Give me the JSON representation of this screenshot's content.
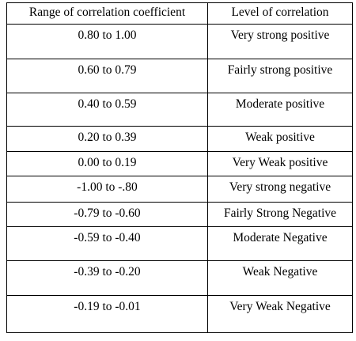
{
  "table": {
    "headers": [
      "Range of correlation coefficient",
      "Level of correlation"
    ],
    "rows": [
      {
        "range": "0.80 to 1.00",
        "level": "Very strong positive"
      },
      {
        "range": "0.60 to 0.79",
        "level": "Fairly strong positive"
      },
      {
        "range": "0.40 to 0.59",
        "level": "Moderate positive"
      },
      {
        "range": "0.20 to 0.39",
        "level": "Weak positive"
      },
      {
        "range": "0.00 to 0.19",
        "level": "Very Weak positive"
      },
      {
        "range": "-1.00 to -.80",
        "level": "Very strong negative"
      },
      {
        "range": "-0.79 to -0.60",
        "level": "Fairly Strong Negative"
      },
      {
        "range": "-0.59 to -0.40",
        "level": "Moderate Negative"
      },
      {
        "range": "-0.39 to -0.20",
        "level": "Weak Negative"
      },
      {
        "range": "-0.19 to -0.01",
        "level": "Very Weak Negative"
      }
    ]
  }
}
